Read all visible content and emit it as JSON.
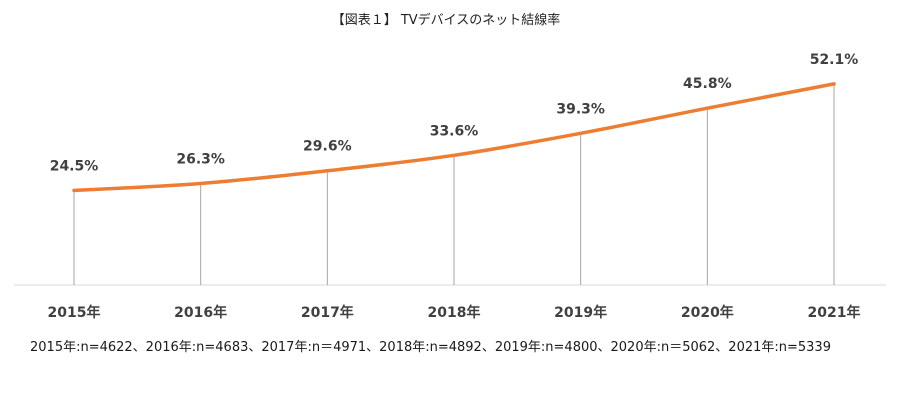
{
  "chart_data": {
    "type": "line",
    "title": "【図表１】 TVデバイスのネット結線率",
    "categories": [
      "2015年",
      "2016年",
      "2017年",
      "2018年",
      "2019年",
      "2020年",
      "2021年"
    ],
    "series": [
      {
        "values": [
          24.5,
          26.3,
          29.6,
          33.6,
          39.3,
          45.8,
          52.1
        ],
        "labels": [
          "24.5%",
          "26.3%",
          "29.6%",
          "33.6%",
          "39.3%",
          "45.8%",
          "52.1%"
        ],
        "color": "#ED7D31"
      }
    ],
    "unit": "%",
    "ylim": [
      0,
      55
    ],
    "grid": false,
    "drop_lines": true,
    "legend": "none"
  },
  "note": "2015年:n=4622、2016年:n=4683、2017年:n＝4971、2018年:n=4892、2019年:n=4800、2020年:n＝5062、2021年:n=5339"
}
